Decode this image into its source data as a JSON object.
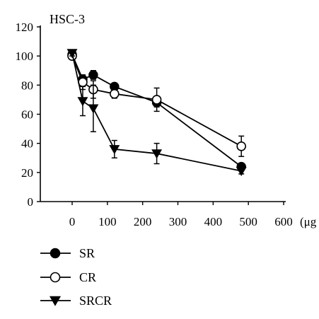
{
  "chart_data": {
    "type": "line",
    "title": "HSC-3",
    "xlabel": "(μg",
    "ylabel": "",
    "xlim": [
      -60,
      600
    ],
    "ylim": [
      0,
      120
    ],
    "x_ticks": [
      0,
      100,
      200,
      300,
      400,
      500,
      600
    ],
    "y_ticks": [
      0,
      20,
      40,
      60,
      80,
      100,
      120
    ],
    "grid": false,
    "legend_position": "bottom-left",
    "series": [
      {
        "name": "SR",
        "marker": "filled-circle",
        "x": [
          0,
          30,
          60,
          120,
          240,
          480
        ],
        "y": [
          101,
          84,
          87,
          79,
          68,
          24
        ],
        "err": [
          2,
          3,
          3,
          2,
          3,
          2
        ]
      },
      {
        "name": "CR",
        "marker": "open-circle",
        "x": [
          0,
          30,
          60,
          120,
          240,
          480
        ],
        "y": [
          100,
          82,
          77,
          74,
          70,
          38
        ],
        "err": [
          2,
          5,
          6,
          3,
          8,
          7
        ]
      },
      {
        "name": "SRCR",
        "marker": "filled-triangle-down",
        "x": [
          0,
          30,
          60,
          120,
          240,
          480
        ],
        "y": [
          102,
          69,
          64,
          36,
          33,
          21
        ],
        "err": [
          2,
          10,
          16,
          6,
          7,
          2
        ]
      }
    ]
  }
}
